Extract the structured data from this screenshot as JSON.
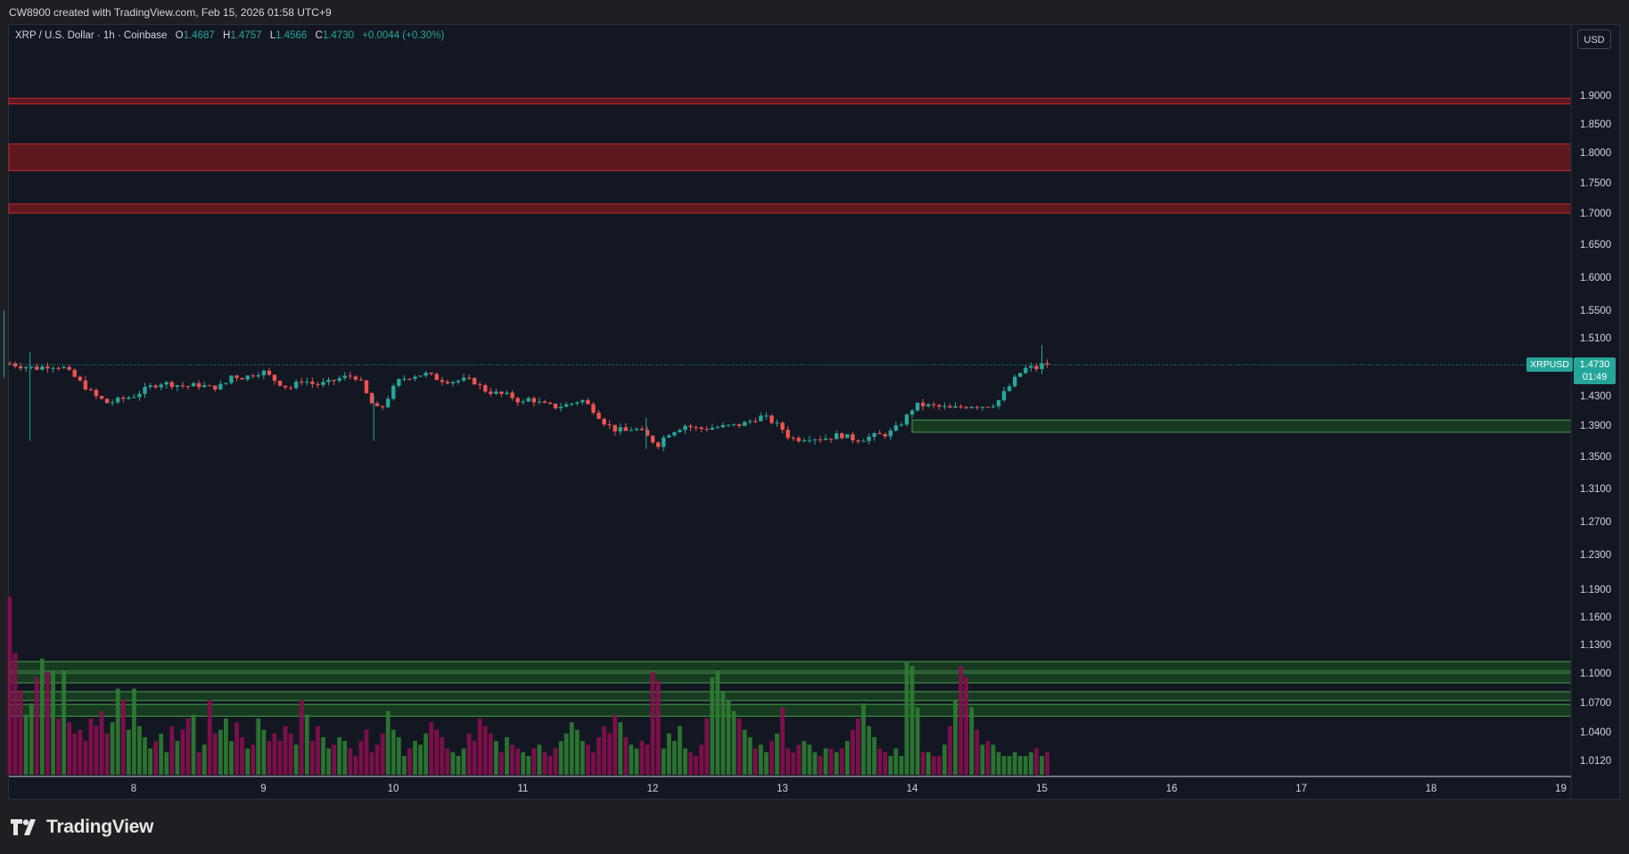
{
  "caption": "CW8900 created with TradingView.com, Feb 15, 2026 01:58 UTC+9",
  "legend": {
    "symbol": "XRP / U.S. Dollar · 1h · Coinbase",
    "o_label": "O",
    "o": "1.4687",
    "h_label": "H",
    "h": "1.4757",
    "l_label": "L",
    "l": "1.4566",
    "c_label": "C",
    "c": "1.4730",
    "change": "+0.0044 (+0.30%)"
  },
  "currency_button": "USD",
  "last_price": {
    "symbol": "XRPUSD",
    "price": "1.4730",
    "countdown": "01:49"
  },
  "brand": "TradingView",
  "colors": {
    "up": "#26a69a",
    "down": "#ef5350",
    "vol_up": "#2e7d32",
    "vol_down": "#880e4f",
    "resistance": "#b71c1c",
    "support": "#1b5e20",
    "background": "#131722"
  },
  "chart_data": {
    "type": "candlestick",
    "timeframe": "1h",
    "y_ticks": [
      "1.9000",
      "1.8500",
      "1.8000",
      "1.7500",
      "1.7000",
      "1.6500",
      "1.6000",
      "1.5500",
      "1.5100",
      "1.4300",
      "1.3900",
      "1.3500",
      "1.3100",
      "1.2700",
      "1.2300",
      "1.1900",
      "1.1600",
      "1.1300",
      "1.1000",
      "1.0700",
      "1.0400",
      "1.0120"
    ],
    "x_ticks": [
      "8",
      "9",
      "10",
      "11",
      "12",
      "13",
      "14",
      "15",
      "16",
      "17",
      "18",
      "19"
    ],
    "resistance_zones": [
      {
        "low": 1.885,
        "high": 1.895
      },
      {
        "low": 1.77,
        "high": 1.815
      },
      {
        "low": 1.7,
        "high": 1.715
      }
    ],
    "support_zones": [
      {
        "low": 1.381,
        "high": 1.397,
        "from_day": 14.0
      },
      {
        "low": 1.102,
        "high": 1.112,
        "from_day": 7.0
      },
      {
        "low": 1.09,
        "high": 1.1,
        "from_day": 7.0
      },
      {
        "low": 1.072,
        "high": 1.081,
        "from_day": 7.0
      },
      {
        "low": 1.056,
        "high": 1.068,
        "from_day": 7.0
      }
    ],
    "last_close": 1.473,
    "path": [
      [
        7.0,
        1.477
      ],
      [
        7.1,
        1.472
      ],
      [
        7.25,
        1.468
      ],
      [
        7.35,
        1.472
      ],
      [
        7.45,
        1.47
      ],
      [
        7.55,
        1.455
      ],
      [
        7.7,
        1.43
      ],
      [
        7.8,
        1.42
      ],
      [
        7.9,
        1.425
      ],
      [
        8.0,
        1.43
      ],
      [
        8.1,
        1.44
      ],
      [
        8.2,
        1.448
      ],
      [
        8.3,
        1.446
      ],
      [
        8.4,
        1.443
      ],
      [
        8.5,
        1.445
      ],
      [
        8.6,
        1.441
      ],
      [
        8.7,
        1.445
      ],
      [
        8.75,
        1.458
      ],
      [
        8.85,
        1.455
      ],
      [
        8.95,
        1.462
      ],
      [
        9.0,
        1.463
      ],
      [
        9.1,
        1.45
      ],
      [
        9.2,
        1.44
      ],
      [
        9.3,
        1.452
      ],
      [
        9.4,
        1.445
      ],
      [
        9.5,
        1.448
      ],
      [
        9.6,
        1.455
      ],
      [
        9.7,
        1.458
      ],
      [
        9.75,
        1.448
      ],
      [
        9.8,
        1.43
      ],
      [
        9.85,
        1.415
      ],
      [
        9.9,
        1.41
      ],
      [
        9.95,
        1.425
      ],
      [
        10.0,
        1.44
      ],
      [
        10.05,
        1.452
      ],
      [
        10.15,
        1.458
      ],
      [
        10.25,
        1.46
      ],
      [
        10.35,
        1.453
      ],
      [
        10.45,
        1.45
      ],
      [
        10.55,
        1.452
      ],
      [
        10.62,
        1.45
      ],
      [
        10.7,
        1.438
      ],
      [
        10.8,
        1.433
      ],
      [
        10.9,
        1.43
      ],
      [
        10.95,
        1.425
      ],
      [
        11.0,
        1.42
      ],
      [
        11.05,
        1.427
      ],
      [
        11.15,
        1.418
      ],
      [
        11.25,
        1.415
      ],
      [
        11.35,
        1.418
      ],
      [
        11.45,
        1.425
      ],
      [
        11.55,
        1.41
      ],
      [
        11.62,
        1.395
      ],
      [
        11.7,
        1.385
      ],
      [
        11.8,
        1.382
      ],
      [
        11.85,
        1.387
      ],
      [
        11.92,
        1.38
      ],
      [
        12.0,
        1.37
      ],
      [
        12.05,
        1.365
      ],
      [
        12.1,
        1.378
      ],
      [
        12.18,
        1.385
      ],
      [
        12.25,
        1.39
      ],
      [
        12.35,
        1.385
      ],
      [
        12.45,
        1.387
      ],
      [
        12.55,
        1.388
      ],
      [
        12.65,
        1.39
      ],
      [
        12.72,
        1.393
      ],
      [
        12.8,
        1.4
      ],
      [
        12.85,
        1.402
      ],
      [
        12.92,
        1.395
      ],
      [
        13.0,
        1.385
      ],
      [
        13.05,
        1.375
      ],
      [
        13.1,
        1.372
      ],
      [
        13.2,
        1.375
      ],
      [
        13.28,
        1.373
      ],
      [
        13.35,
        1.374
      ],
      [
        13.45,
        1.378
      ],
      [
        13.52,
        1.373
      ],
      [
        13.6,
        1.372
      ],
      [
        13.7,
        1.376
      ],
      [
        13.78,
        1.378
      ],
      [
        13.85,
        1.382
      ],
      [
        13.9,
        1.39
      ],
      [
        13.95,
        1.4
      ],
      [
        14.0,
        1.412
      ],
      [
        14.05,
        1.418
      ],
      [
        14.15,
        1.416
      ],
      [
        14.25,
        1.414
      ],
      [
        14.3,
        1.412
      ],
      [
        14.35,
        1.414
      ],
      [
        14.45,
        1.417
      ],
      [
        14.55,
        1.416
      ],
      [
        14.65,
        1.42
      ],
      [
        14.7,
        1.432
      ],
      [
        14.75,
        1.443
      ],
      [
        14.8,
        1.455
      ],
      [
        14.85,
        1.465
      ],
      [
        14.9,
        1.47
      ],
      [
        14.95,
        1.467
      ],
      [
        15.0,
        1.473
      ],
      [
        15.05,
        1.473
      ]
    ],
    "volume_profile": [
      0.95,
      0.65,
      0.45,
      0.32,
      0.38,
      0.52,
      0.44,
      0.36,
      0.42,
      0.3,
      0.55,
      0.28,
      0.22,
      0.24,
      0.18,
      0.3,
      0.26,
      0.34,
      0.22,
      0.28,
      0.46,
      0.4,
      0.24,
      0.32,
      0.26,
      0.2,
      0.14,
      0.18,
      0.22,
      0.12,
      0.26,
      0.18,
      0.24,
      0.3,
      0.32,
      0.12,
      0.16,
      0.4,
      0.22,
      0.24,
      0.3,
      0.18,
      0.28,
      0.2,
      0.14,
      0.16,
      0.3,
      0.24,
      0.18,
      0.22,
      0.18,
      0.26,
      0.22,
      0.16,
      0.2,
      0.32,
      0.18,
      0.26,
      0.2,
      0.14,
      0.16,
      0.2,
      0.18,
      0.14,
      0.1,
      0.18,
      0.24,
      0.12,
      0.16,
      0.22,
      0.16,
      0.24,
      0.2,
      0.1,
      0.14,
      0.18,
      0.16,
      0.22,
      0.28,
      0.24,
      0.2,
      0.14,
      0.12,
      0.1,
      0.14,
      0.22,
      0.18,
      0.3,
      0.26,
      0.22,
      0.18,
      0.12,
      0.2,
      0.16,
      0.14,
      0.12,
      0.1,
      0.14,
      0.16,
      0.12,
      0.1,
      0.14,
      0.18,
      0.22,
      0.28,
      0.24,
      0.18,
      0.16,
      0.12,
      0.2,
      0.26,
      0.22,
      0.32,
      0.28,
      0.2,
      0.16,
      0.14,
      0.18,
      0.16,
      0.12,
      0.1,
      0.14,
      0.22,
      0.18,
      0.26,
      0.14,
      0.12,
      0.1,
      0.16,
      0.3,
      0.52,
      0.55,
      0.44,
      0.4,
      0.34,
      0.3,
      0.24,
      0.2,
      0.14,
      0.16,
      0.12,
      0.18,
      0.22,
      0.1,
      0.14,
      0.12,
      0.16,
      0.18,
      0.16,
      0.12,
      0.1,
      0.14,
      0.14,
      0.12,
      0.14,
      0.18,
      0.24,
      0.3,
      0.38,
      0.26,
      0.2,
      0.14,
      0.12,
      0.1,
      0.14,
      0.1,
      0.12,
      0.14,
      0.1,
      0.12,
      0.12,
      0.1,
      0.1,
      0.16,
      0.26,
      0.4,
      0.58,
      0.52,
      0.36,
      0.24,
      0.16,
      0.18,
      0.16,
      0.12,
      0.1,
      0.1,
      0.12,
      0.1,
      0.1,
      0.12,
      0.14,
      0.1,
      0.12,
      0.16,
      0.18,
      0.2,
      0.16,
      0.14
    ],
    "volume_spikes": {
      "7.0": 1.0,
      "7.3": 0.62,
      "7.35": 0.55,
      "8.0": 0.46,
      "9.3": 0.4,
      "9.95": 0.34,
      "12.0": 0.55,
      "12.05": 0.5,
      "13.0": 0.36,
      "13.95": 0.6,
      "14.0": 0.58,
      "14.05": 0.36
    }
  }
}
